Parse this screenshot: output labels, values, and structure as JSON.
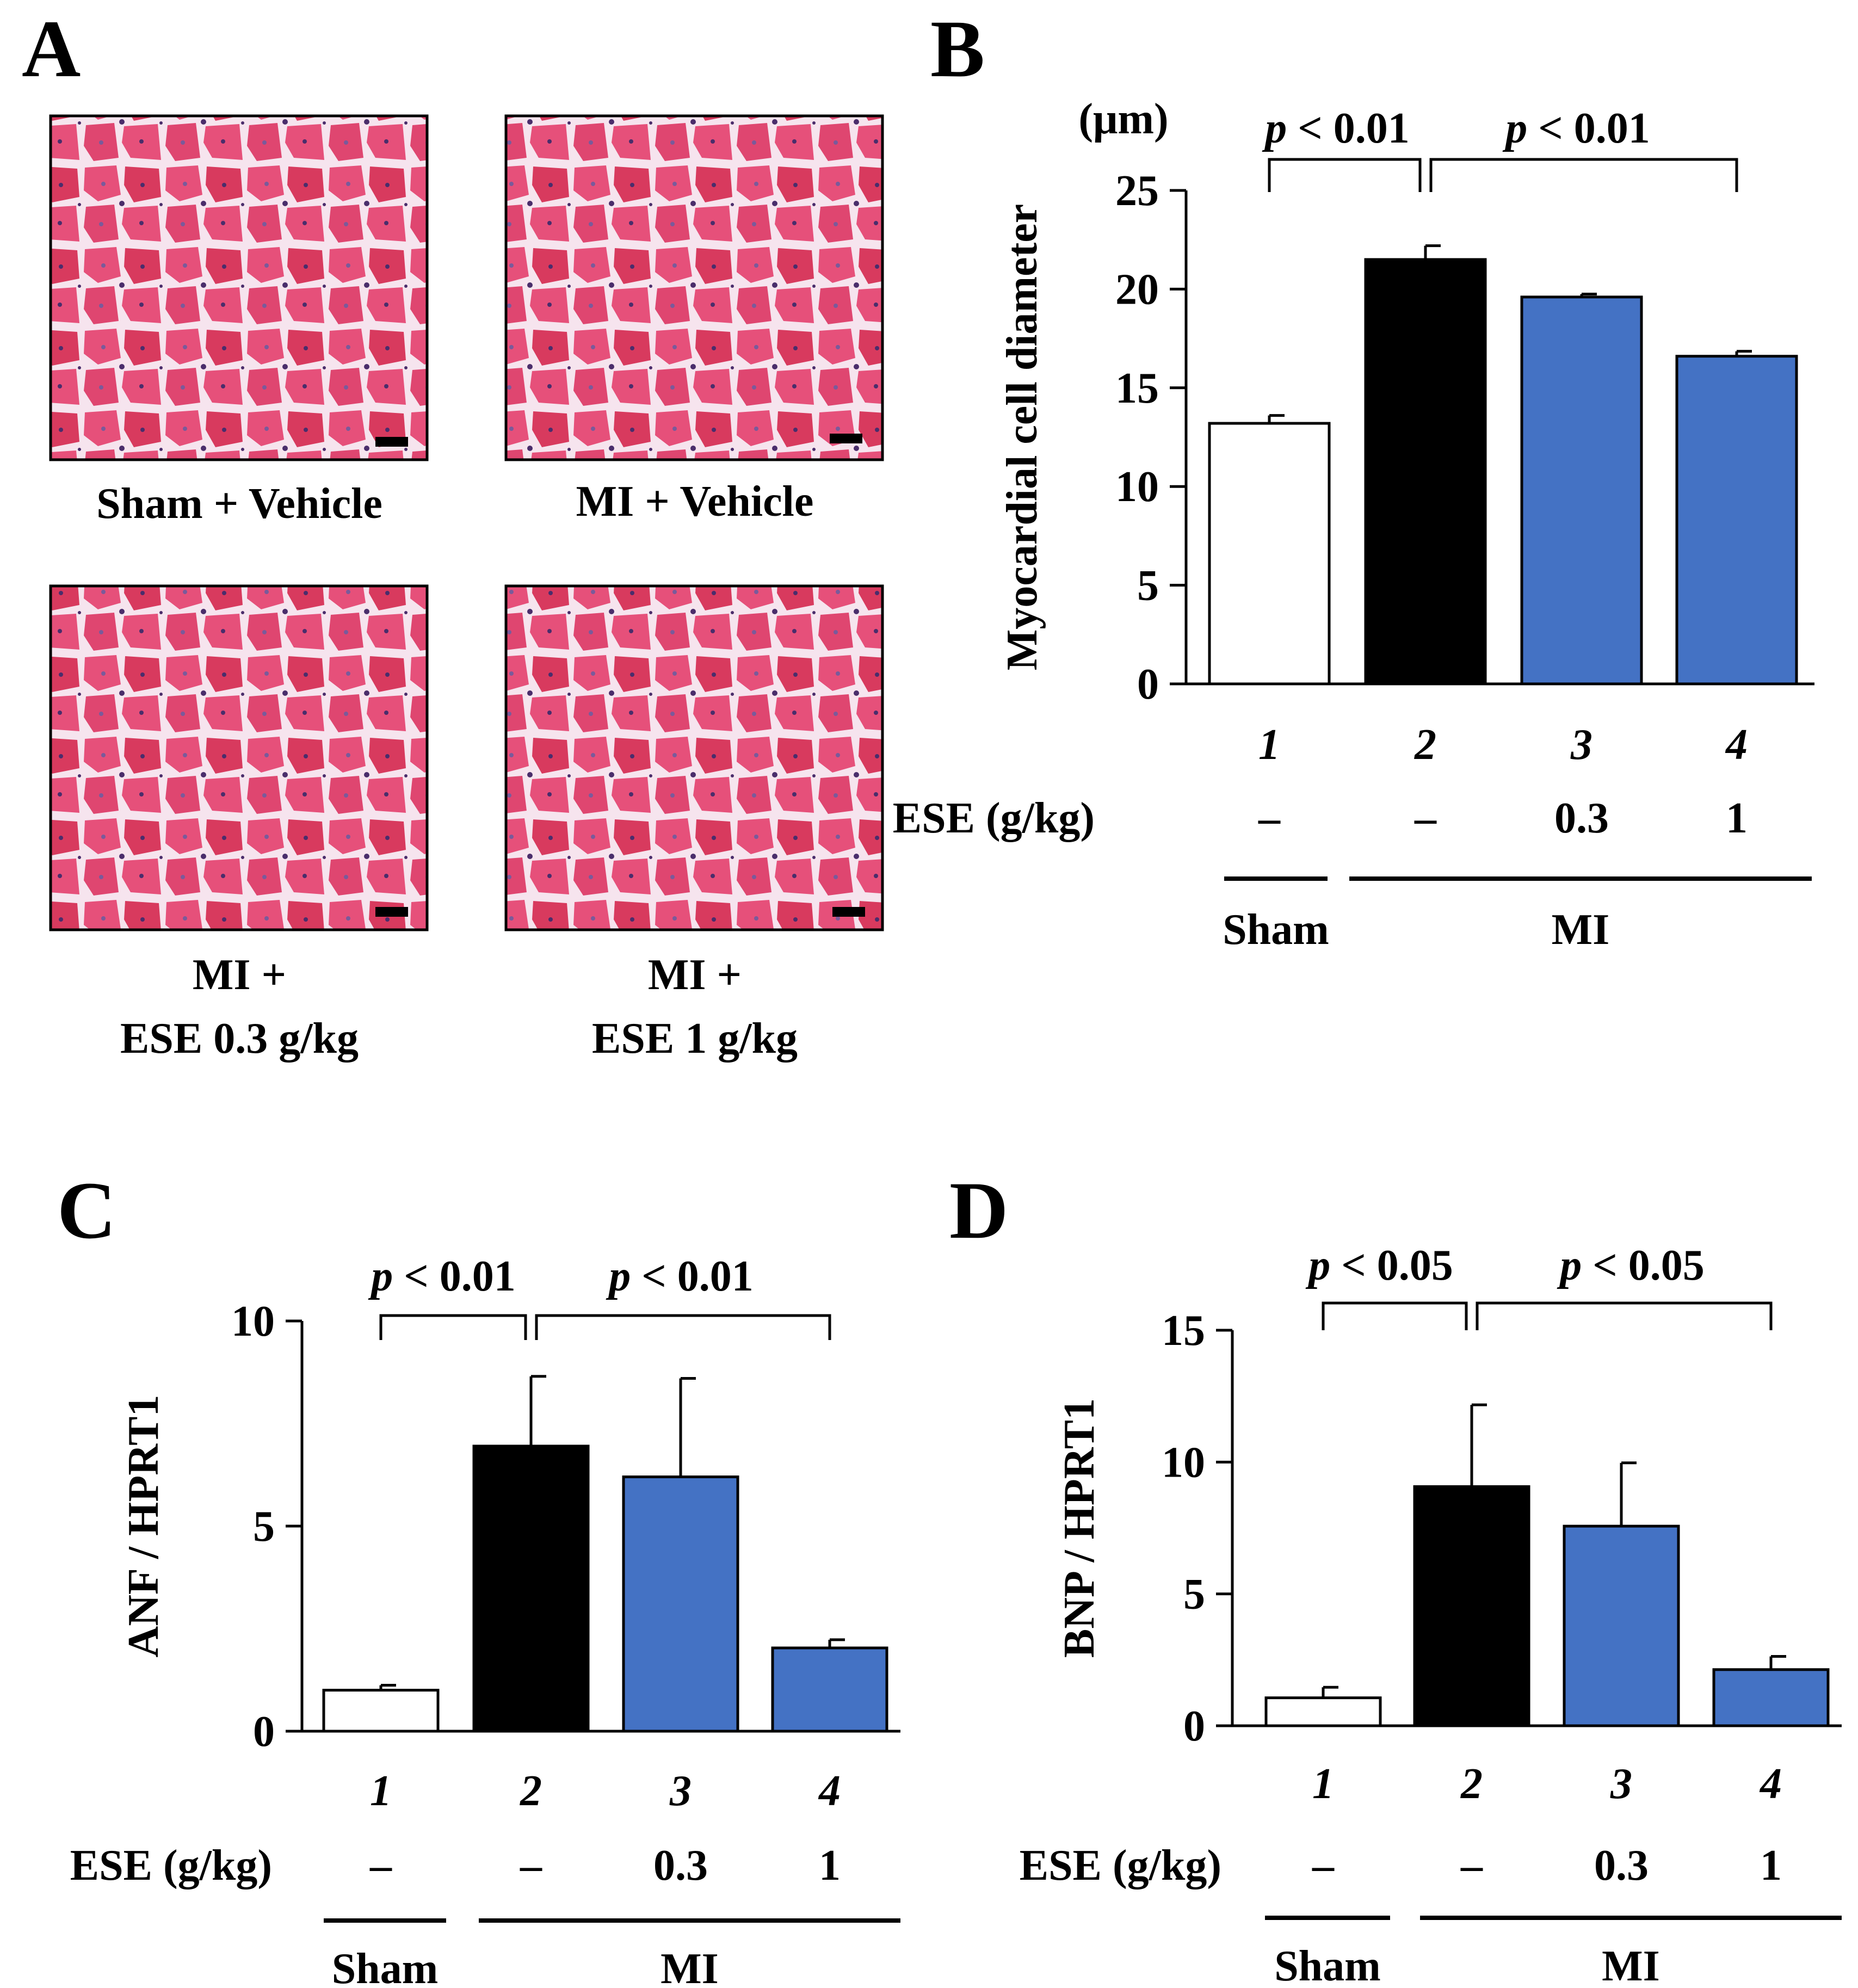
{
  "figure": {
    "panel_letters": [
      "A",
      "B",
      "C",
      "D"
    ]
  },
  "panel_a": {
    "images": [
      {
        "label_lines": [
          "Sham + Vehicle"
        ]
      },
      {
        "label_lines": [
          "MI + Vehicle"
        ]
      },
      {
        "label_lines": [
          "MI +",
          "ESE 0.3 g/kg"
        ]
      },
      {
        "label_lines": [
          "MI +",
          "ESE 1 g/kg"
        ]
      }
    ],
    "colors": {
      "tissue": "#e6507a",
      "tissue_dark": "#d83a5e",
      "interstitium": "#f6e4ee",
      "nuclei": "#4a2d6b"
    }
  },
  "chart_data": [
    {
      "panel": "B",
      "type": "bar",
      "categories": [
        "1",
        "2",
        "3",
        "4"
      ],
      "values": [
        13.2,
        21.5,
        19.6,
        16.6
      ],
      "errors": [
        0.4,
        0.7,
        0.15,
        0.25
      ],
      "colors": [
        "#ffffff",
        "#000000",
        "#4472c4",
        "#4472c4"
      ],
      "ylabel": "Myocardial cell diameter",
      "unit": "(μm)",
      "ylim": [
        0,
        25
      ],
      "yticks": [
        0,
        5,
        10,
        15,
        20,
        25
      ],
      "ese_label": "ESE (g/kg)",
      "ese_values": [
        "–",
        "–",
        "0.3",
        "1"
      ],
      "groups": [
        {
          "label": "Sham",
          "bars": [
            1,
            1
          ]
        },
        {
          "label": "MI",
          "bars": [
            2,
            4
          ]
        }
      ],
      "significance": [
        {
          "from": 1,
          "to": 2,
          "label": "p < 0.01"
        },
        {
          "from": 2,
          "to": 4,
          "label": "p < 0.01"
        }
      ]
    },
    {
      "panel": "C",
      "type": "bar",
      "categories": [
        "1",
        "2",
        "3",
        "4"
      ],
      "values": [
        1.0,
        6.95,
        6.2,
        2.03
      ],
      "errors": [
        0.12,
        1.7,
        2.4,
        0.2
      ],
      "colors": [
        "#ffffff",
        "#000000",
        "#4472c4",
        "#4472c4"
      ],
      "ylabel": "ANF / HPRT1",
      "ylim": [
        0,
        10
      ],
      "yticks": [
        0,
        5,
        10
      ],
      "ese_label": "ESE (g/kg)",
      "ese_values": [
        "–",
        "–",
        "0.3",
        "1"
      ],
      "groups": [
        {
          "label": "Sham",
          "bars": [
            1,
            1
          ]
        },
        {
          "label": "MI",
          "bars": [
            2,
            4
          ]
        }
      ],
      "significance": [
        {
          "from": 1,
          "to": 2,
          "label": "p < 0.01"
        },
        {
          "from": 2,
          "to": 4,
          "label": "p < 0.01"
        }
      ]
    },
    {
      "panel": "D",
      "type": "bar",
      "categories": [
        "1",
        "2",
        "3",
        "4"
      ],
      "values": [
        1.06,
        9.07,
        7.57,
        2.13
      ],
      "errors": [
        0.4,
        3.1,
        2.4,
        0.5
      ],
      "colors": [
        "#ffffff",
        "#000000",
        "#4472c4",
        "#4472c4"
      ],
      "ylabel": "BNP / HPRT1",
      "ylim": [
        0,
        15
      ],
      "yticks": [
        0,
        5,
        10,
        15
      ],
      "ese_label": "ESE (g/kg)",
      "ese_values": [
        "–",
        "–",
        "0.3",
        "1"
      ],
      "groups": [
        {
          "label": "Sham",
          "bars": [
            1,
            1
          ]
        },
        {
          "label": "MI",
          "bars": [
            2,
            4
          ]
        }
      ],
      "significance": [
        {
          "from": 1,
          "to": 2,
          "label": "p < 0.05"
        },
        {
          "from": 2,
          "to": 4,
          "label": "p < 0.05"
        }
      ]
    }
  ]
}
